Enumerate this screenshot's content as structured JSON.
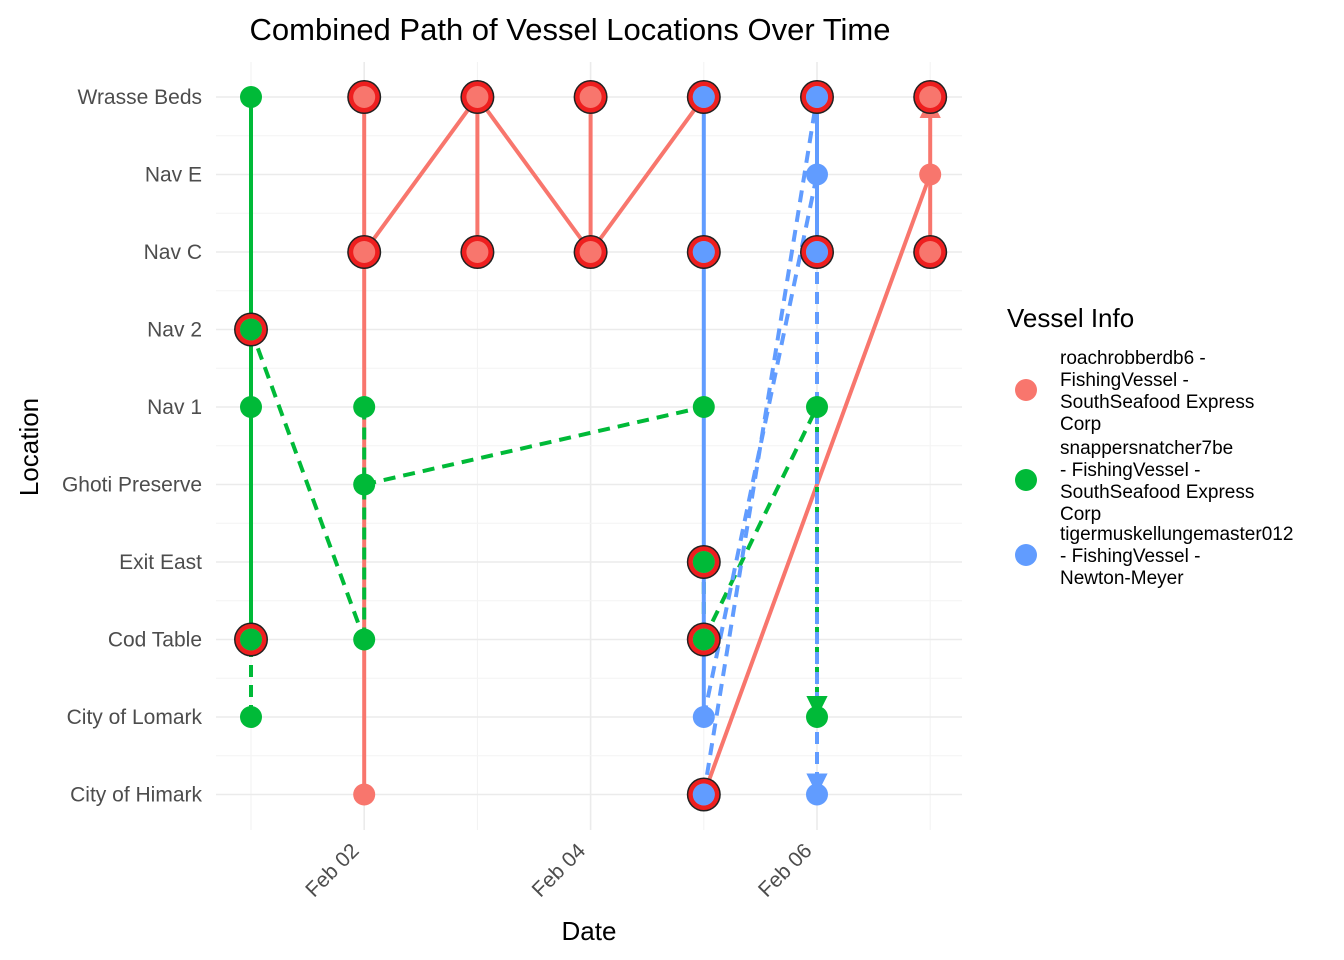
{
  "chart_data": {
    "type": "line",
    "title": "Combined Path of Vessel Locations Over Time",
    "xlabel": "Date",
    "ylabel": "Location",
    "x_ticks": [
      "Feb 02",
      "Feb 04",
      "Feb 06"
    ],
    "x_tick_days": [
      2,
      4,
      6
    ],
    "x_range_days": [
      0.9,
      7.3
    ],
    "locations": [
      "City of Himark",
      "City of Lomark",
      "Cod Table",
      "Exit East",
      "Ghoti Preserve",
      "Nav 1",
      "Nav 2",
      "Nav C",
      "Nav E",
      "Wrasse Beds"
    ],
    "grid": true,
    "legend": {
      "title": "Vessel Info",
      "placement": "right",
      "entries": [
        {
          "lines": [
            "roachrobberdb6 -",
            "FishingVessel -",
            "SouthSeafood Express",
            "Corp"
          ],
          "color": "#F8766D"
        },
        {
          "lines": [
            "snappersnatcher7be",
            "- FishingVessel -",
            "SouthSeafood Express",
            "Corp"
          ],
          "color": "#00BA38"
        },
        {
          "lines": [
            "tigermuskellungemaster012",
            "- FishingVessel -",
            "Newton-Meyer"
          ],
          "color": "#619CFF"
        }
      ]
    },
    "series": [
      {
        "name": "roachrobberdb6 - FishingVessel - SouthSeafood Express Corp",
        "color": "#F8766D",
        "points": [
          {
            "day": 1,
            "loc": "Nav 2"
          },
          {
            "day": 1,
            "loc": "Cod Table"
          },
          {
            "day": 2,
            "loc": "City of Himark"
          },
          {
            "day": 2,
            "loc": "Nav C"
          },
          {
            "day": 2,
            "loc": "Wrasse Beds"
          },
          {
            "day": 2,
            "loc": "Nav C"
          },
          {
            "day": 3,
            "loc": "Wrasse Beds"
          },
          {
            "day": 3,
            "loc": "Nav C"
          },
          {
            "day": 3,
            "loc": "Wrasse Beds"
          },
          {
            "day": 4,
            "loc": "Nav C"
          },
          {
            "day": 4,
            "loc": "Wrasse Beds"
          },
          {
            "day": 4,
            "loc": "Nav C"
          },
          {
            "day": 5,
            "loc": "Wrasse Beds"
          },
          {
            "day": 5,
            "loc": "Nav C"
          },
          {
            "day": 5,
            "loc": "Exit East"
          },
          {
            "day": 5,
            "loc": "Cod Table"
          },
          {
            "day": 5,
            "loc": "City of Himark"
          },
          {
            "day": 6,
            "loc": "Wrasse Beds"
          },
          {
            "day": 6,
            "loc": "Nav C"
          },
          {
            "day": 7,
            "loc": "Nav E"
          },
          {
            "day": 7,
            "loc": "Nav C"
          },
          {
            "day": 7,
            "loc": "Wrasse Beds"
          }
        ]
      },
      {
        "name": "snappersnatcher7be - FishingVessel - SouthSeafood Express Corp",
        "color": "#00BA38",
        "points": [
          {
            "day": 1,
            "loc": "City of Lomark"
          },
          {
            "day": 1,
            "loc": "Cod Table"
          },
          {
            "day": 1,
            "loc": "Nav 1"
          },
          {
            "day": 1,
            "loc": "Nav 2"
          },
          {
            "day": 1,
            "loc": "Wrasse Beds"
          },
          {
            "day": 2,
            "loc": "Cod Table"
          },
          {
            "day": 2,
            "loc": "Ghoti Preserve"
          },
          {
            "day": 2,
            "loc": "Nav 1"
          },
          {
            "day": 5,
            "loc": "Nav 1"
          },
          {
            "day": 5,
            "loc": "Exit East"
          },
          {
            "day": 5,
            "loc": "Cod Table"
          },
          {
            "day": 6,
            "loc": "Nav 1"
          },
          {
            "day": 6,
            "loc": "City of Lomark"
          }
        ]
      },
      {
        "name": "tigermuskellungemaster012 - FishingVessel - Newton-Meyer",
        "color": "#619CFF",
        "points": [
          {
            "day": 5,
            "loc": "Wrasse Beds"
          },
          {
            "day": 5,
            "loc": "Nav C"
          },
          {
            "day": 5,
            "loc": "City of Lomark"
          },
          {
            "day": 5,
            "loc": "City of Himark"
          },
          {
            "day": 6,
            "loc": "Wrasse Beds"
          },
          {
            "day": 6,
            "loc": "Nav E"
          },
          {
            "day": 6,
            "loc": "Nav C"
          },
          {
            "day": 6,
            "loc": "City of Himark"
          }
        ]
      }
    ]
  }
}
